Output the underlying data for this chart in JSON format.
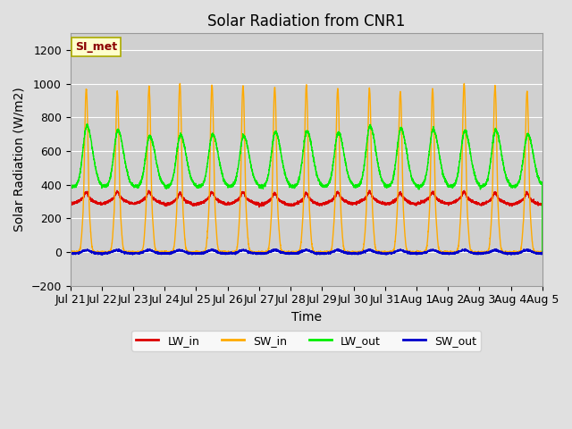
{
  "title": "Solar Radiation from CNR1",
  "xlabel": "Time",
  "ylabel": "Solar Radiation (W/m2)",
  "ylim": [
    -200,
    1300
  ],
  "yticks": [
    -200,
    0,
    200,
    400,
    600,
    800,
    1000,
    1200
  ],
  "n_days": 15,
  "x_tick_labels": [
    "Jul 21",
    "Jul 22",
    "Jul 23",
    "Jul 24",
    "Jul 25",
    "Jul 26",
    "Jul 27",
    "Jul 28",
    "Jul 29",
    "Jul 30",
    "Jul 31",
    "Aug 1",
    "Aug 2",
    "Aug 3",
    "Aug 4",
    "Aug 5"
  ],
  "colors": {
    "LW_in": "#dd0000",
    "SW_in": "#ffaa00",
    "LW_out": "#00ee00",
    "SW_out": "#0000cc"
  },
  "legend_label": "SI_met",
  "bg_color": "#e0e0e0",
  "plot_bg_color": "#d0d0d0",
  "title_fontsize": 12,
  "axis_label_fontsize": 10,
  "tick_fontsize": 9,
  "figsize": [
    6.4,
    4.8
  ],
  "dpi": 100
}
